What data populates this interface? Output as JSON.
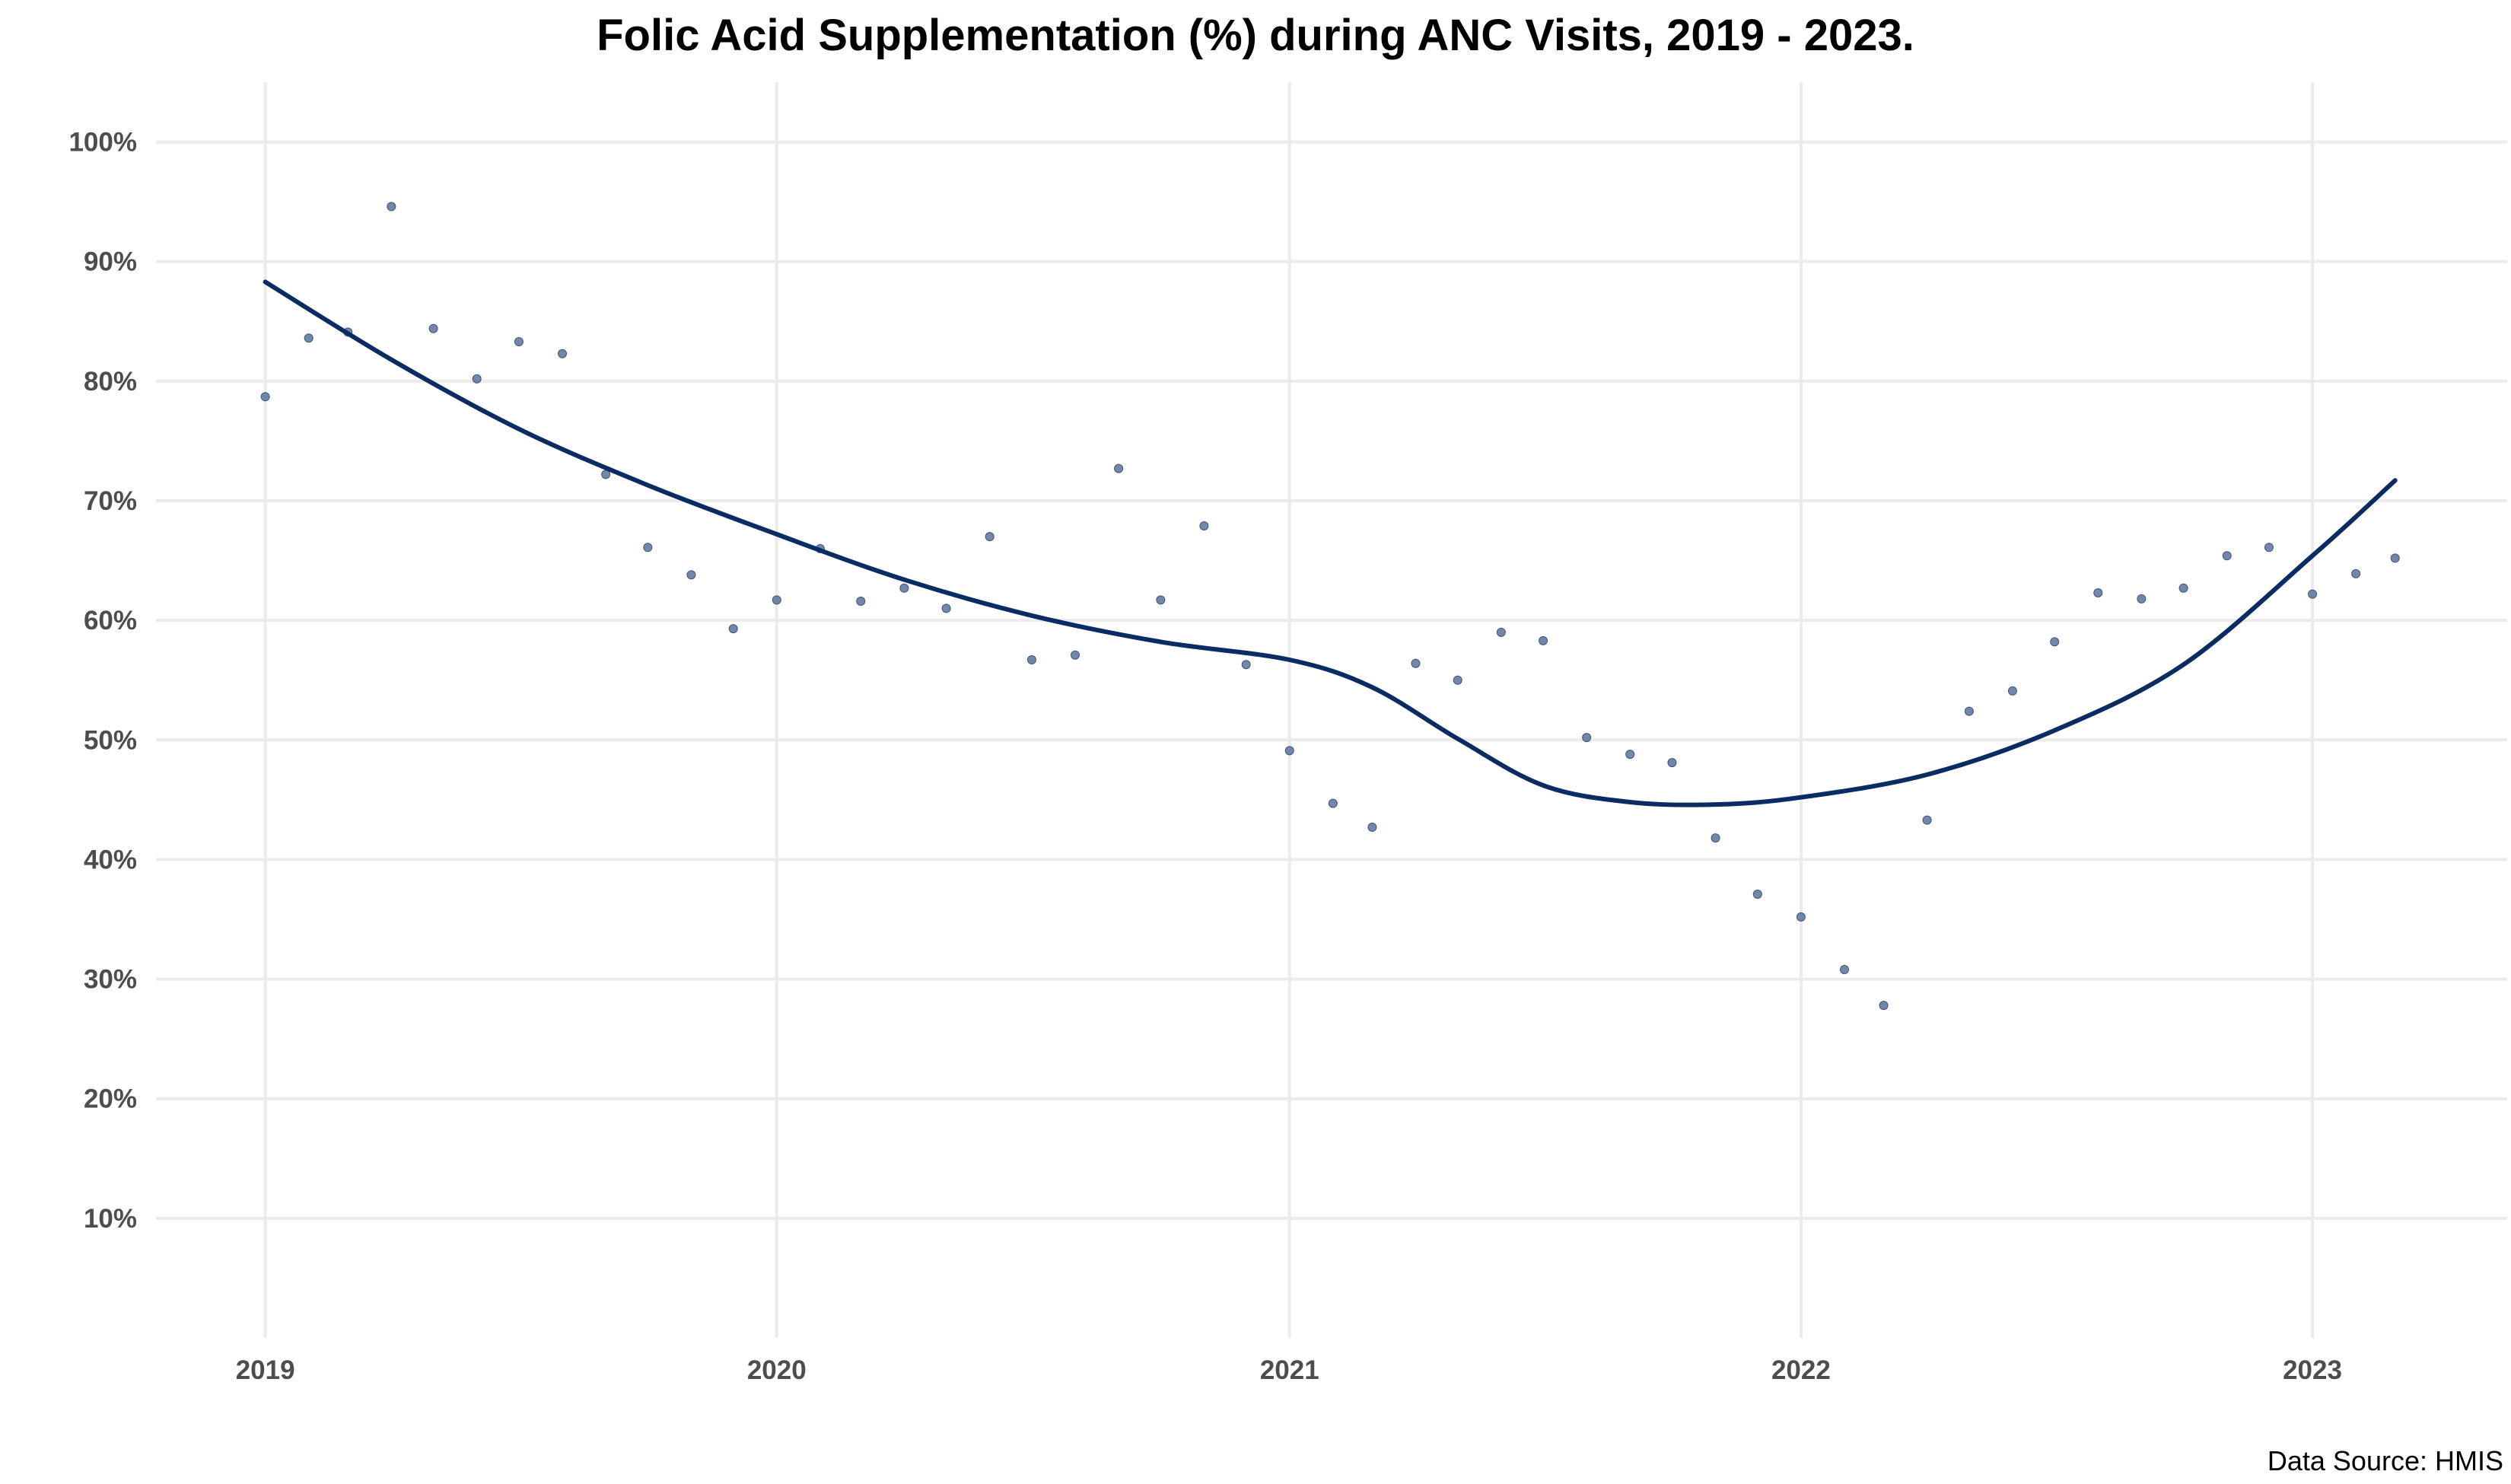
{
  "chart_data": {
    "type": "scatter",
    "title": "Folic Acid Supplementation (%) during ANC Visits, 2019 - 2023.",
    "caption": "Data Source: HMIS",
    "xlabel": "",
    "ylabel": "",
    "x_ticks": [
      "2019",
      "2020",
      "2021",
      "2022",
      "2023"
    ],
    "y_ticks": [
      "10%",
      "20%",
      "30%",
      "40%",
      "50%",
      "60%",
      "70%",
      "80%",
      "90%",
      "100%"
    ],
    "xlim": [
      "2018-10-15",
      "2023-05-20"
    ],
    "ylim": [
      0,
      105
    ],
    "grid": true,
    "legend": "none",
    "colors": {
      "points": "#5a7299",
      "trend": "#0b2b63",
      "grid": "#ebebeb"
    },
    "series": [
      {
        "kind": "points",
        "x": [
          "2019-01",
          "2019-02",
          "2019-03",
          "2019-04",
          "2019-05",
          "2019-06",
          "2019-07",
          "2019-08",
          "2019-09",
          "2019-10",
          "2019-11",
          "2019-12",
          "2020-01",
          "2020-02",
          "2020-03",
          "2020-04",
          "2020-05",
          "2020-06",
          "2020-07",
          "2020-08",
          "2020-09",
          "2020-10",
          "2020-11",
          "2020-12",
          "2021-01",
          "2021-02",
          "2021-03",
          "2021-04",
          "2021-05",
          "2021-06",
          "2021-07",
          "2021-08",
          "2021-09",
          "2021-10",
          "2021-11",
          "2021-12",
          "2022-01",
          "2022-02",
          "2022-03",
          "2022-04",
          "2022-05",
          "2022-06",
          "2022-07",
          "2022-08",
          "2022-09",
          "2022-10",
          "2022-11",
          "2022-12",
          "2023-01",
          "2023-02",
          "2023-03"
        ],
        "y": [
          78.7,
          83.6,
          84.1,
          94.6,
          84.4,
          80.2,
          83.3,
          82.3,
          72.2,
          66.1,
          63.8,
          59.3,
          61.7,
          66.0,
          61.6,
          62.7,
          61.0,
          67.0,
          56.7,
          57.1,
          72.7,
          61.7,
          67.9,
          56.3,
          49.1,
          44.7,
          42.7,
          56.4,
          55.0,
          59.0,
          58.3,
          50.2,
          48.8,
          48.1,
          41.8,
          37.1,
          35.2,
          30.8,
          27.8,
          43.3,
          52.4,
          54.1,
          58.2,
          62.3,
          61.8,
          62.7,
          65.4,
          66.1,
          62.2,
          63.9,
          65.2
        ]
      },
      {
        "kind": "smooth-line",
        "x": [
          "2019-01",
          "2019-04",
          "2019-07",
          "2019-10",
          "2020-01",
          "2020-04",
          "2020-07",
          "2020-10",
          "2021-01",
          "2021-03",
          "2021-05",
          "2021-07",
          "2021-09",
          "2021-11",
          "2022-01",
          "2022-04",
          "2022-07",
          "2022-10",
          "2023-01",
          "2023-03"
        ],
        "y": [
          88.3,
          81.8,
          76.0,
          71.3,
          67.2,
          63.4,
          60.4,
          58.2,
          56.7,
          54.4,
          50.1,
          46.2,
          44.8,
          44.6,
          45.2,
          47.1,
          50.8,
          56.3,
          65.4,
          71.7
        ]
      }
    ]
  }
}
